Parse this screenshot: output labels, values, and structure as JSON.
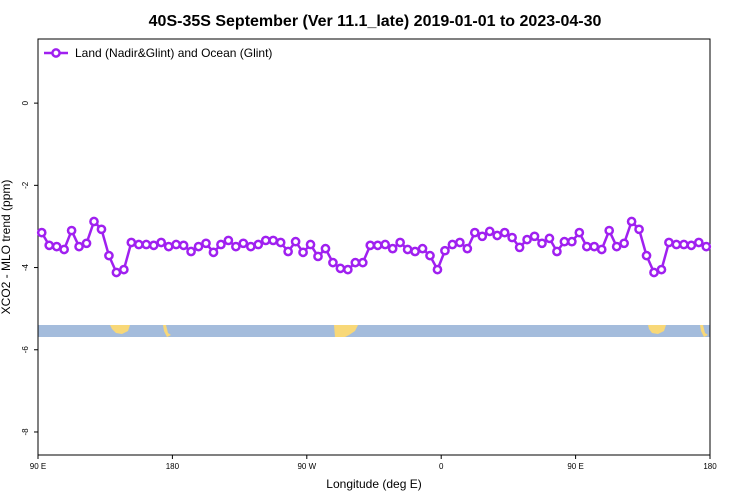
{
  "chart_data": {
    "type": "line",
    "title": "40S-35S September (Ver 11.1_late)   2019-01-01 to 2023-04-30",
    "xlabel": "Longitude (deg E)",
    "ylabel": "XCO2 - MLO trend (ppm)",
    "x": [
      92.5,
      97.5,
      102.5,
      107.5,
      112.5,
      117.5,
      122.5,
      127.5,
      132.5,
      137.5,
      142.5,
      147.5,
      152.5,
      157.5,
      162.5,
      167.5,
      172.5,
      177.5,
      182.5,
      187.5,
      192.5,
      197.5,
      202.5,
      207.5,
      212.5,
      217.5,
      222.5,
      227.5,
      232.5,
      237.5,
      242.5,
      247.5,
      252.5,
      257.5,
      262.5,
      267.5,
      272.5,
      277.5,
      282.5,
      287.5,
      292.5,
      297.5,
      302.5,
      307.5,
      312.5,
      317.5,
      322.5,
      327.5,
      332.5,
      337.5,
      342.5,
      347.5,
      352.5,
      357.5,
      362.5,
      367.5,
      372.5,
      377.5,
      382.5,
      387.5,
      392.5,
      397.5,
      402.5,
      407.5,
      412.5,
      417.5,
      422.5,
      427.5,
      432.5,
      437.5,
      442.5,
      447.5,
      452.5,
      457.5,
      462.5,
      467.5,
      472.5,
      477.5,
      482.5,
      487.5,
      492.5,
      497.5,
      502.5,
      507.5,
      512.5,
      517.5,
      522.5,
      527.5,
      532.5,
      537.5
    ],
    "series": [
      {
        "name": "Land (Nadir&Glint) and Ocean (Glint)",
        "color": "#a020f0",
        "values": [
          -3.15,
          -3.46,
          -3.49,
          -3.56,
          -3.1,
          -3.49,
          -3.41,
          -2.88,
          -3.07,
          -3.71,
          -4.12,
          -4.05,
          -3.39,
          -3.44,
          -3.44,
          -3.46,
          -3.39,
          -3.49,
          -3.44,
          -3.46,
          -3.61,
          -3.49,
          -3.41,
          -3.63,
          -3.44,
          -3.34,
          -3.49,
          -3.41,
          -3.49,
          -3.44,
          -3.34,
          -3.34,
          -3.39,
          -3.61,
          -3.37,
          -3.63,
          -3.44,
          -3.73,
          -3.54,
          -3.88,
          -4.02,
          -4.05,
          -3.88,
          -3.88,
          -3.46,
          -3.46,
          -3.44,
          -3.54,
          -3.39,
          -3.56,
          -3.61,
          -3.54,
          -3.71,
          -4.05,
          -3.59,
          -3.44,
          -3.39,
          -3.54,
          -3.15,
          -3.24,
          -3.12,
          -3.22,
          -3.15,
          -3.27,
          -3.51,
          -3.32,
          -3.24,
          -3.41,
          -3.29,
          -3.61,
          -3.37,
          -3.37,
          -3.15,
          -3.49,
          -3.49,
          -3.56,
          -3.1,
          -3.49,
          -3.41,
          -2.88,
          -3.07,
          -3.71,
          -4.12,
          -4.05,
          -3.39,
          -3.44,
          -3.44,
          -3.46,
          -3.39,
          -3.49
        ]
      }
    ],
    "xlim": [
      90,
      540
    ],
    "xticks": [
      {
        "value": 90,
        "label": "90 E"
      },
      {
        "value": 180,
        "label": "180"
      },
      {
        "value": 270,
        "label": "90 W"
      },
      {
        "value": 360,
        "label": "0"
      },
      {
        "value": 450,
        "label": "90 E"
      },
      {
        "value": 540,
        "label": "180"
      }
    ],
    "ylim": [
      -8.56,
      1.56
    ],
    "yticks": [
      0,
      -2,
      -4,
      -6,
      -8
    ],
    "legend": "upper left"
  }
}
